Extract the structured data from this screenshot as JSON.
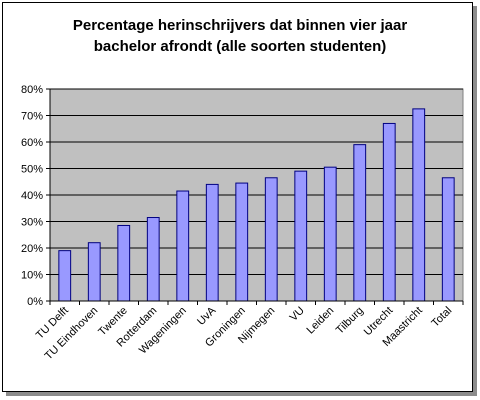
{
  "chart_data": {
    "type": "bar",
    "title": "Percentage herinschrijvers dat binnen vier jaar bachelor afrondt (alle soorten studenten)",
    "title_lines": [
      "Percentage herinschrijvers dat binnen vier jaar",
      "bachelor afrondt (alle soorten studenten)"
    ],
    "categories": [
      "TU Delft",
      "TU Eindhoven",
      "Twente",
      "Rotterdam",
      "Wageningen",
      "UvA",
      "Groningen",
      "Nijmegen",
      "VU",
      "Leiden",
      "Tilburg",
      "Utrecht",
      "Maastricht",
      "Total"
    ],
    "values": [
      19,
      22,
      28.5,
      31.5,
      41.5,
      44,
      44.5,
      46.5,
      49,
      50.5,
      59,
      67,
      72.5,
      46.5
    ],
    "ylim": [
      0,
      80
    ],
    "yticks": [
      "0%",
      "10%",
      "20%",
      "30%",
      "40%",
      "50%",
      "60%",
      "70%",
      "80%"
    ],
    "grid": true,
    "legend": "none",
    "colors": {
      "bar_fill": "#9999ff",
      "bar_stroke": "#000080",
      "plot_bg": "#c0c0c0",
      "gridline": "#000000"
    }
  }
}
